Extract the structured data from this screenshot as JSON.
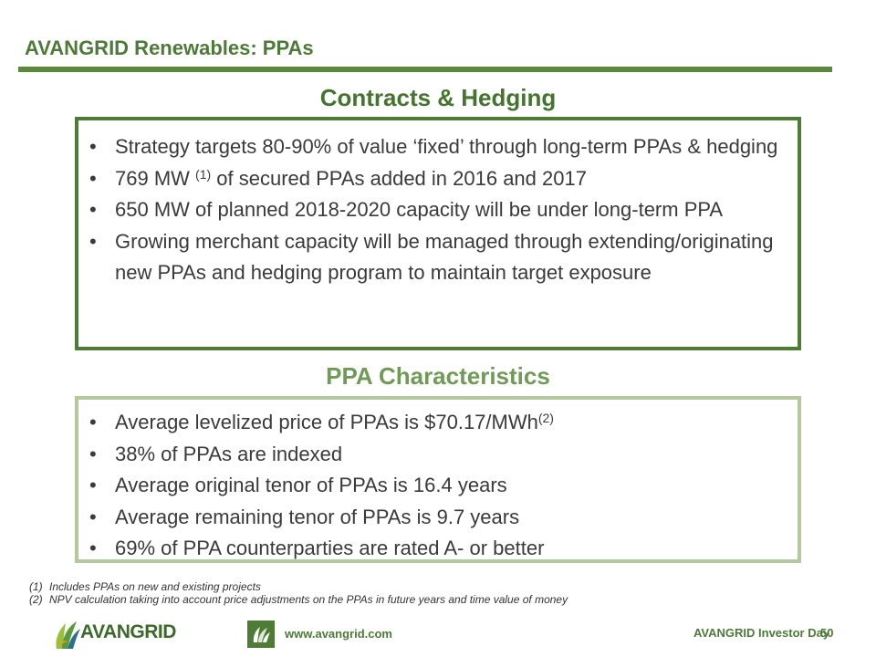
{
  "header": {
    "title": "AVANGRID Renewables:  PPAs"
  },
  "contracts": {
    "heading": "Contracts & Hedging",
    "bullets": [
      {
        "text": "Strategy targets 80-90% of value ‘fixed’ through long-term PPAs & hedging"
      },
      {
        "before": "769 MW ",
        "sup": "(1)",
        "after": " of secured PPAs added in 2016 and 2017"
      },
      {
        "text": "650 MW of planned 2018-2020 capacity will be under long-term PPA"
      },
      {
        "text": "Growing merchant capacity will be managed through extending/originating new PPAs and hedging program to maintain target exposure"
      }
    ]
  },
  "characteristics": {
    "heading": "PPA Characteristics",
    "bullets": [
      {
        "before": "Average levelized price of PPAs is $70.17/MWh",
        "sup": "(2)"
      },
      {
        "text": "38% of PPAs are indexed"
      },
      {
        "text": "Average original tenor of PPAs is 16.4 years"
      },
      {
        "text": "Average remaining tenor of PPAs is 9.7 years"
      },
      {
        "text": "69% of PPA counterparties are rated A- or better"
      }
    ]
  },
  "footnotes": [
    {
      "num": "(1)",
      "text": "Includes PPAs on new and existing projects"
    },
    {
      "num": "(2)",
      "text": "NPV calculation taking into account price adjustments on the PPAs in future years and time value of money"
    }
  ],
  "footer": {
    "logo_text": "AVANGRID",
    "url": "www.avangrid.com",
    "event": "AVANGRID Investor Day",
    "page": "50"
  },
  "colors": {
    "dark_green": "#4e7b35",
    "light_green": "#b5c9a0"
  }
}
